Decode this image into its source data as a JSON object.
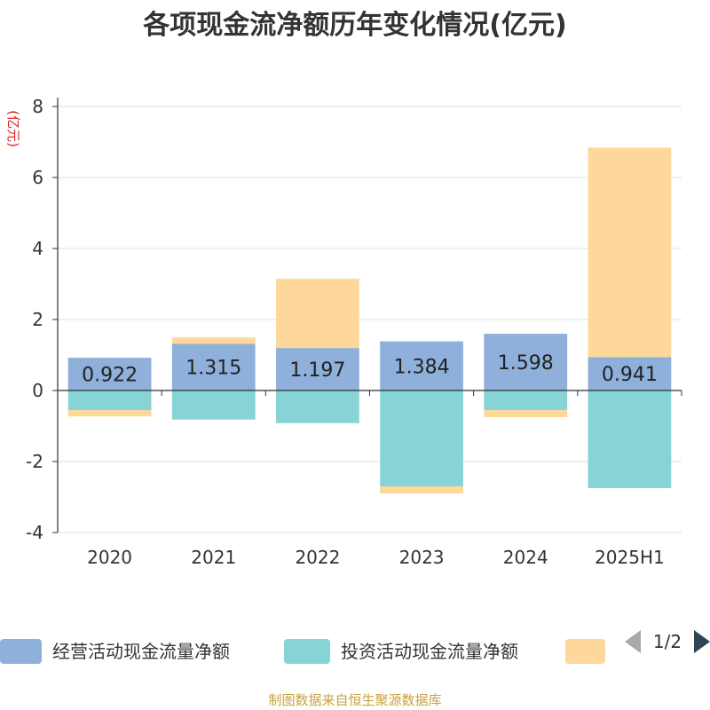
{
  "chart_data": {
    "type": "bar",
    "stacked": true,
    "title": "各项现金流净额历年变化情况(亿元)",
    "ylabel": "(亿元)",
    "categories": [
      "2020",
      "2021",
      "2022",
      "2023",
      "2024",
      "2025H1"
    ],
    "ylim": [
      -4,
      8
    ],
    "yticks": [
      8,
      6,
      4,
      2,
      0,
      -2,
      -4
    ],
    "grid": true,
    "series": [
      {
        "name": "经营活动现金流量净额",
        "color": "#8eb0db",
        "values": [
          0.922,
          1.315,
          1.197,
          1.384,
          1.598,
          0.941
        ],
        "labels": [
          "0.922",
          "1.315",
          "1.197",
          "1.384",
          "1.598",
          "0.941"
        ]
      },
      {
        "name": "投资活动现金流量净额",
        "color": "#86d4d6",
        "values": [
          -0.55,
          -0.82,
          -0.92,
          -2.7,
          -0.55,
          -2.75
        ]
      },
      {
        "color": "#fdd89a",
        "values": [
          -0.18,
          0.18,
          1.95,
          -0.2,
          -0.2,
          5.9
        ]
      }
    ],
    "legend_position": "bottom",
    "legend_page": "1/2"
  },
  "source": "制图数据来自恒生聚源数据库"
}
